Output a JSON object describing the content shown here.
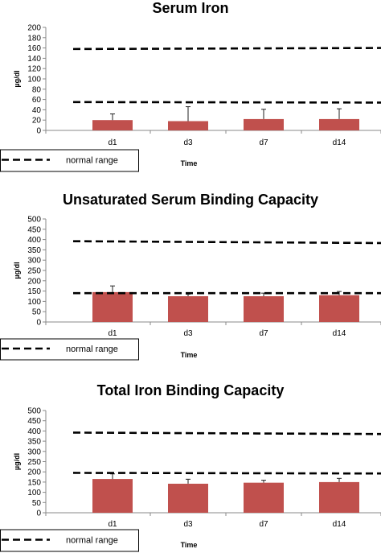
{
  "chart_data": [
    {
      "type": "bar",
      "title": "Serum Iron",
      "xlabel": "Time",
      "ylabel": "µg/dl",
      "categories": [
        "d1",
        "d3",
        "d7",
        "d14"
      ],
      "values": [
        20,
        18,
        22,
        22
      ],
      "error_plus": [
        12,
        28,
        19,
        20
      ],
      "ylim": [
        0,
        200
      ],
      "ytick_step": 20,
      "reference_lines": [
        {
          "y_start": 158,
          "y_end": 160
        },
        {
          "y_start": 55,
          "y_end": 54
        }
      ],
      "legend": {
        "label": "normal range",
        "placement": "bottom-left"
      },
      "bar_color": "#c0504d",
      "grid": false
    },
    {
      "type": "bar",
      "title": "Unsaturated Serum Binding Capacity",
      "xlabel": "Time",
      "ylabel": "µg/dl",
      "categories": [
        "d1",
        "d3",
        "d7",
        "d14"
      ],
      "values": [
        145,
        125,
        125,
        130
      ],
      "error_plus": [
        30,
        10,
        15,
        18
      ],
      "ylim": [
        0,
        500
      ],
      "ytick_step": 50,
      "reference_lines": [
        {
          "y_start": 392,
          "y_end": 383
        },
        {
          "y_start": 140,
          "y_end": 140
        }
      ],
      "legend": {
        "label": "normal range",
        "placement": "bottom-left"
      },
      "bar_color": "#c0504d",
      "grid": false
    },
    {
      "type": "bar",
      "title": "Total Iron Binding Capacity",
      "xlabel": "Time",
      "ylabel": "µg/dl",
      "categories": [
        "d1",
        "d3",
        "d7",
        "d14"
      ],
      "values": [
        165,
        142,
        147,
        150
      ],
      "error_plus": [
        25,
        22,
        12,
        18
      ],
      "ylim": [
        0,
        500
      ],
      "ytick_step": 50,
      "reference_lines": [
        {
          "y_start": 392,
          "y_end": 385
        },
        {
          "y_start": 195,
          "y_end": 192
        }
      ],
      "legend": {
        "label": "normal range",
        "placement": "bottom-left"
      },
      "bar_color": "#c0504d",
      "grid": false
    }
  ]
}
